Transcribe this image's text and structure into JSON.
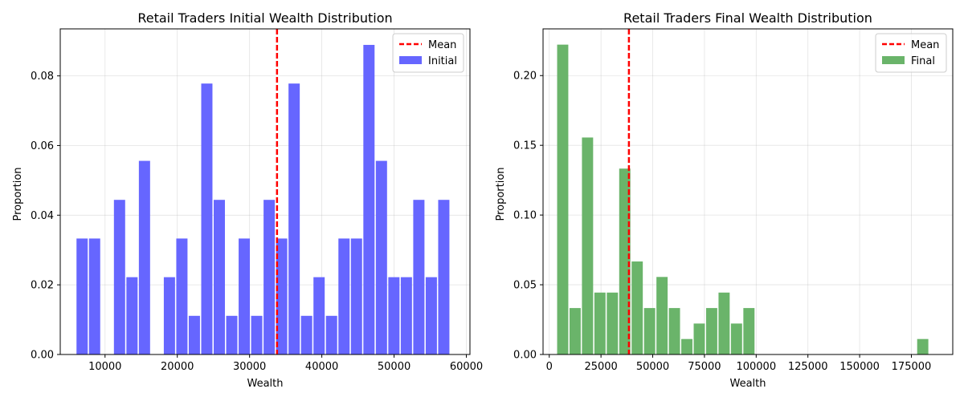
{
  "chart_data": [
    {
      "type": "bar",
      "title": "Retail Traders Initial Wealth Distribution",
      "xlabel": "Wealth",
      "ylabel": "Proportion",
      "xlim": [
        3800,
        60500
      ],
      "ylim": [
        0,
        0.0935
      ],
      "xticks": [
        10000,
        20000,
        30000,
        40000,
        50000,
        60000
      ],
      "xtick_labels": [
        "10000",
        "20000",
        "30000",
        "40000",
        "50000",
        "60000"
      ],
      "yticks": [
        0,
        0.02,
        0.04,
        0.06,
        0.08
      ],
      "ytick_labels": [
        "0.00",
        "0.02",
        "0.04",
        "0.06",
        "0.08"
      ],
      "grid": true,
      "legend_position": "top-right",
      "mean": 33800,
      "series": [
        {
          "name": "Initial",
          "color": "#6666ff",
          "bin_width": 1726,
          "bin_starts": [
            6050,
            7776,
            9502,
            11228,
            12954,
            14680,
            16406,
            18132,
            19858,
            21584,
            23310,
            25036,
            26762,
            28488,
            30214,
            31940,
            33666,
            35392,
            37118,
            38844,
            40570,
            42296,
            44022,
            45748,
            47474,
            49200,
            50926,
            52652,
            54378,
            56104
          ],
          "values": [
            0.0333,
            0.0333,
            0,
            0.0444,
            0.0222,
            0.0556,
            0,
            0.0222,
            0.0333,
            0.0111,
            0.0778,
            0.0444,
            0.0111,
            0.0333,
            0.0111,
            0.0444,
            0.0333,
            0.0778,
            0.0111,
            0.0222,
            0.0111,
            0.0333,
            0.0333,
            0.0889,
            0.0556,
            0.0222,
            0.0222,
            0.0444,
            0.0222,
            0.0444
          ]
        },
        {
          "name": "Mean",
          "type": "vline",
          "color": "#ff0000",
          "style": "dashed"
        }
      ]
    },
    {
      "type": "bar",
      "title": "Retail Traders Final Wealth Distribution",
      "xlabel": "Wealth",
      "ylabel": "Proportion",
      "xlim": [
        -3000,
        195000
      ],
      "ylim": [
        0,
        0.2335
      ],
      "xticks": [
        0,
        25000,
        50000,
        75000,
        100000,
        125000,
        150000,
        175000
      ],
      "xtick_labels": [
        "0",
        "25000",
        "50000",
        "75000",
        "100000",
        "125000",
        "150000",
        "175000"
      ],
      "yticks": [
        0,
        0.05,
        0.1,
        0.15,
        0.2
      ],
      "ytick_labels": [
        "0.00",
        "0.05",
        "0.10",
        "0.15",
        "0.20"
      ],
      "grid": true,
      "legend_position": "top-right",
      "mean": 38500,
      "series": [
        {
          "name": "Final",
          "color": "#6ab46a",
          "bin_width": 6000,
          "bin_starts": [
            3800,
            9800,
            15800,
            21800,
            27800,
            33800,
            39800,
            45800,
            51800,
            57800,
            63800,
            69800,
            75800,
            81800,
            87800,
            93800,
            99800,
            105800,
            111800,
            117800,
            123800,
            129800,
            135800,
            141800,
            147800,
            153800,
            159800,
            165800,
            171800,
            177800
          ],
          "values": [
            0.2222,
            0.0333,
            0.1556,
            0.0444,
            0.0444,
            0.1333,
            0.0667,
            0.0333,
            0.0556,
            0.0333,
            0.0111,
            0.0222,
            0.0333,
            0.0444,
            0.0222,
            0.0333,
            0,
            0,
            0,
            0,
            0,
            0,
            0,
            0,
            0,
            0,
            0,
            0,
            0,
            0.0111
          ]
        },
        {
          "name": "Mean",
          "type": "vline",
          "color": "#ff0000",
          "style": "dashed"
        }
      ]
    }
  ]
}
